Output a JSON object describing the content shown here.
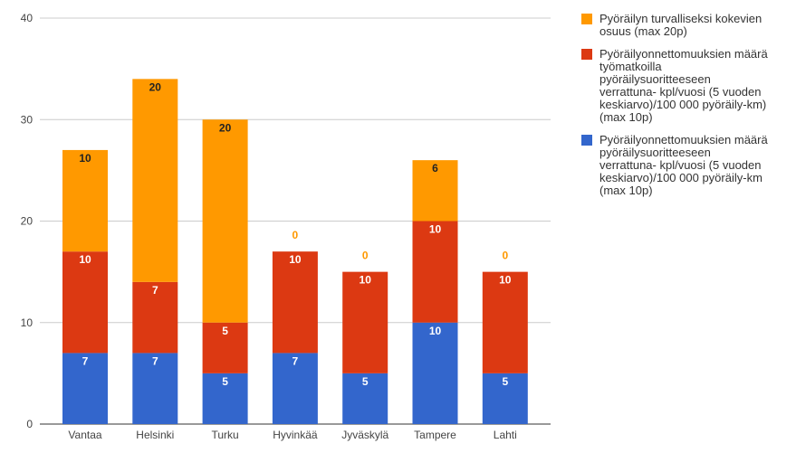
{
  "chart_data": {
    "type": "bar",
    "stacked": true,
    "categories": [
      "Vantaa",
      "Helsinki",
      "Turku",
      "Hyvinkää",
      "Jyväskylä",
      "Tampere",
      "Lahti"
    ],
    "series": [
      {
        "name": "Pyöräilyonnettomuuksien määrä pyöräilysuoritteeseen verrattuna- kpl/vuosi (5 vuoden keskiarvo)/100 000 pyöräily-km (max 10p)",
        "color": "#3366cc",
        "values": [
          7,
          7,
          5,
          7,
          5,
          10,
          5
        ],
        "labels": [
          "7",
          "7",
          "5",
          "7",
          "5",
          "10",
          "5"
        ]
      },
      {
        "name": "Pyöräilyonnettomuuksien määrä työmatkoilla pyöräilysuoritteeseen verrattuna- kpl/vuosi (5 vuoden keskiarvo)/100 000 pyöräily-km) (max 10p)",
        "color": "#dc3912",
        "values": [
          10,
          7,
          5,
          10,
          10,
          10,
          10
        ],
        "labels": [
          "10",
          "7",
          "5",
          "10",
          "10",
          "10",
          "10"
        ]
      },
      {
        "name": "Pyöräilyn turvalliseksi kokevien osuus (max 20p)",
        "color": "#ff9900",
        "values": [
          10,
          20,
          20,
          0,
          0,
          6,
          0
        ],
        "labels": [
          "10",
          "20",
          "20",
          "0",
          "0",
          "6",
          "0"
        ]
      }
    ],
    "ylim": [
      0,
      40
    ],
    "yticks": [
      0,
      10,
      20,
      30,
      40
    ],
    "ytick_labels": [
      "0",
      "10",
      "20",
      "30",
      "40"
    ],
    "grid": true,
    "legend_position": "right",
    "legend": [
      {
        "color": "#ff9900",
        "lines": [
          "Pyöräilyn turvalliseksi kokevien",
          "osuus (max 20p)"
        ]
      },
      {
        "color": "#dc3912",
        "lines": [
          "Pyöräilyonnettomuuksien määrä",
          "työmatkoilla",
          "pyöräilysuoritteeseen",
          "verrattuna- kpl/vuosi (5 vuoden",
          "keskiarvo)/100 000 pyöräily-km)",
          "(max 10p)"
        ]
      },
      {
        "color": "#3366cc",
        "lines": [
          "Pyöräilyonnettomuuksien määrä",
          "pyöräilysuoritteeseen",
          "verrattuna- kpl/vuosi (5 vuoden",
          "keskiarvo)/100 000 pyöräily-km",
          "(max 10p)"
        ]
      }
    ]
  }
}
